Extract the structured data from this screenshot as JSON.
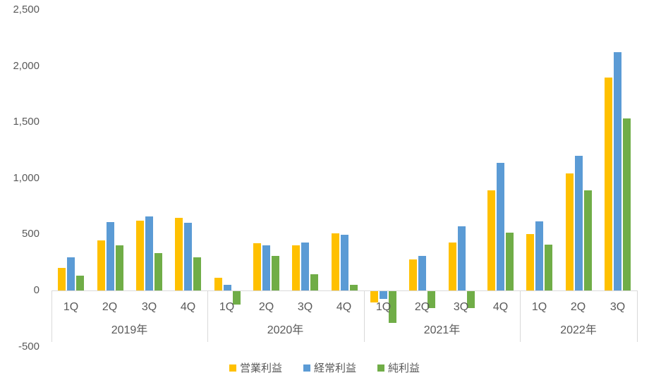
{
  "chart_data": {
    "type": "bar",
    "title": "",
    "xlabel": "",
    "ylabel": "",
    "grid": false,
    "legend_position": "bottom",
    "y_axis": {
      "min": -500,
      "max": 2500,
      "step": 500,
      "tick_labels": [
        "2,500",
        "2,000",
        "1,500",
        "1,000",
        "500",
        "0",
        "-500"
      ]
    },
    "groups": [
      {
        "year": "2019年",
        "quarters": [
          "1Q",
          "2Q",
          "3Q",
          "4Q"
        ]
      },
      {
        "year": "2020年",
        "quarters": [
          "1Q",
          "2Q",
          "3Q",
          "4Q"
        ]
      },
      {
        "year": "2021年",
        "quarters": [
          "1Q",
          "2Q",
          "3Q",
          "4Q"
        ]
      },
      {
        "year": "2022年",
        "quarters": [
          "1Q",
          "2Q",
          "3Q"
        ]
      }
    ],
    "series": [
      {
        "name": "営業利益",
        "color": "#FFC000",
        "values": [
          200,
          445,
          620,
          650,
          110,
          420,
          405,
          510,
          -100,
          275,
          430,
          895,
          505,
          1040,
          1900
        ]
      },
      {
        "name": "経常利益",
        "color": "#5B9BD5",
        "values": [
          295,
          610,
          660,
          600,
          50,
          405,
          425,
          495,
          -70,
          305,
          570,
          1135,
          615,
          1200,
          2120
        ]
      },
      {
        "name": "純利益",
        "color": "#70AD47",
        "values": [
          130,
          405,
          330,
          295,
          -120,
          310,
          145,
          50,
          -280,
          -150,
          -150,
          515,
          410,
          890,
          1530
        ]
      }
    ]
  },
  "colors": {
    "axis_line": "#d9d9d9",
    "tick_text": "#595959",
    "background": "#ffffff"
  }
}
